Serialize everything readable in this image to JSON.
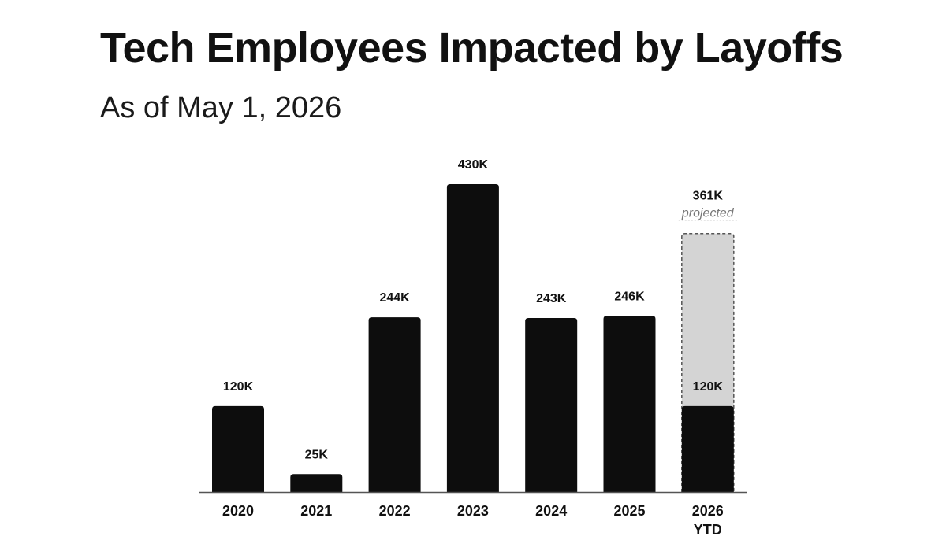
{
  "chart_data": {
    "type": "bar",
    "title": "Tech Employees Impacted by Layoffs",
    "subtitle": "As of May 1, 2026",
    "categories": [
      "2020",
      "2021",
      "2022",
      "2023",
      "2024",
      "2025",
      "2026 YTD"
    ],
    "category_lines": [
      [
        "2020"
      ],
      [
        "2021"
      ],
      [
        "2022"
      ],
      [
        "2023"
      ],
      [
        "2024"
      ],
      [
        "2025"
      ],
      [
        "2026",
        "YTD"
      ]
    ],
    "values": [
      120,
      25,
      244,
      430,
      243,
      246,
      120
    ],
    "value_labels": [
      "120K",
      "25K",
      "244K",
      "430K",
      "243K",
      "246K",
      "120K"
    ],
    "projection": {
      "category": "2026 YTD",
      "value": 361,
      "value_label": "361K",
      "note": "projected"
    },
    "units": "thousands",
    "ylim": [
      0,
      430
    ],
    "grid": false,
    "legend": "none",
    "colors": {
      "bar": "#0d0d0d",
      "projected_fill": "#d4d4d4",
      "projected_border": "#555555",
      "axis": "#555555",
      "text": "#111111",
      "note": "#777777"
    }
  }
}
